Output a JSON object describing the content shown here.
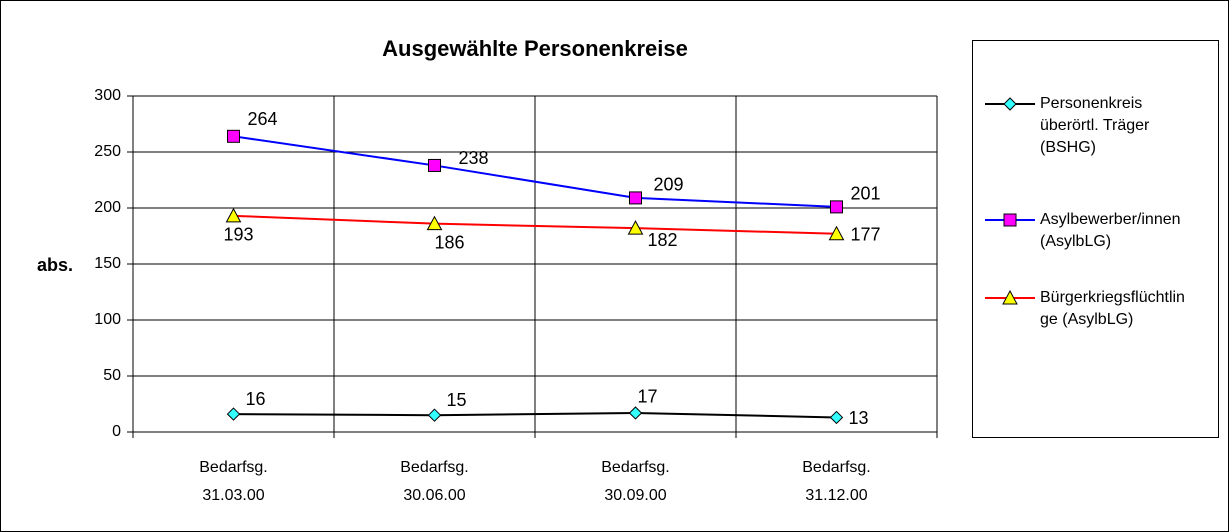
{
  "chart_data": {
    "type": "line",
    "title": "Ausgewählte Personenkreise",
    "y_label": "abs.",
    "categories": [
      [
        "Bedarfsg.",
        "31.03.00"
      ],
      [
        "Bedarfsg.",
        "30.06.00"
      ],
      [
        "Bedarfsg.",
        "30.09.00"
      ],
      [
        "Bedarfsg.",
        "31.12.00"
      ]
    ],
    "series": [
      {
        "name": "Personenkreis überörtl. Träger (BSHG)",
        "color": "#000000",
        "marker": "diamond",
        "marker_color": "#33ffff",
        "values": [
          16,
          15,
          17,
          13
        ]
      },
      {
        "name": "Asylbewerber/innen (AsylbLG)",
        "color": "#0000ff",
        "marker": "square",
        "marker_color": "#ff00ff",
        "values": [
          264,
          238,
          209,
          201
        ]
      },
      {
        "name": "Bürgerkriegsflüchtlinge (AsylbLG)",
        "color": "#ff0000",
        "marker": "triangle",
        "marker_color": "#ffff00",
        "values": [
          193,
          186,
          182,
          177
        ]
      }
    ],
    "ylim": [
      0,
      300
    ],
    "yticks": [
      0,
      50,
      100,
      150,
      200,
      250,
      300
    ],
    "grid": true,
    "legend": "right"
  }
}
